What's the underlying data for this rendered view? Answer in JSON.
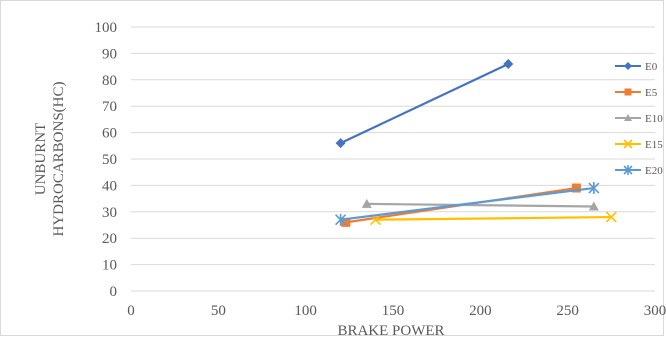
{
  "chart_data": {
    "type": "line",
    "title": "",
    "xlabel": "BRAKE POWER",
    "ylabel_lines": [
      "UNBURNT",
      "HYDROCARBONS(HC)"
    ],
    "xlim": [
      0,
      300
    ],
    "ylim": [
      0,
      100
    ],
    "xticks": [
      0,
      50,
      100,
      150,
      200,
      250,
      300
    ],
    "yticks": [
      0,
      10,
      20,
      30,
      40,
      50,
      60,
      70,
      80,
      90,
      100
    ],
    "grid": true,
    "legend_position": "right",
    "series": [
      {
        "name": "E0",
        "color": "#4472C4",
        "marker": "diamond",
        "x": [
          120,
          216
        ],
        "y": [
          56,
          86
        ]
      },
      {
        "name": "E5",
        "color": "#ED7D31",
        "marker": "square",
        "x": [
          123,
          255
        ],
        "y": [
          26,
          39
        ]
      },
      {
        "name": "E10",
        "color": "#A5A5A5",
        "marker": "triangle",
        "x": [
          135,
          265
        ],
        "y": [
          33,
          32
        ]
      },
      {
        "name": "E15",
        "color": "#FFC000",
        "marker": "x",
        "x": [
          140,
          275
        ],
        "y": [
          27,
          28
        ]
      },
      {
        "name": "E20",
        "color": "#5B9BD5",
        "marker": "star",
        "x": [
          120,
          265
        ],
        "y": [
          27,
          39
        ]
      }
    ]
  }
}
